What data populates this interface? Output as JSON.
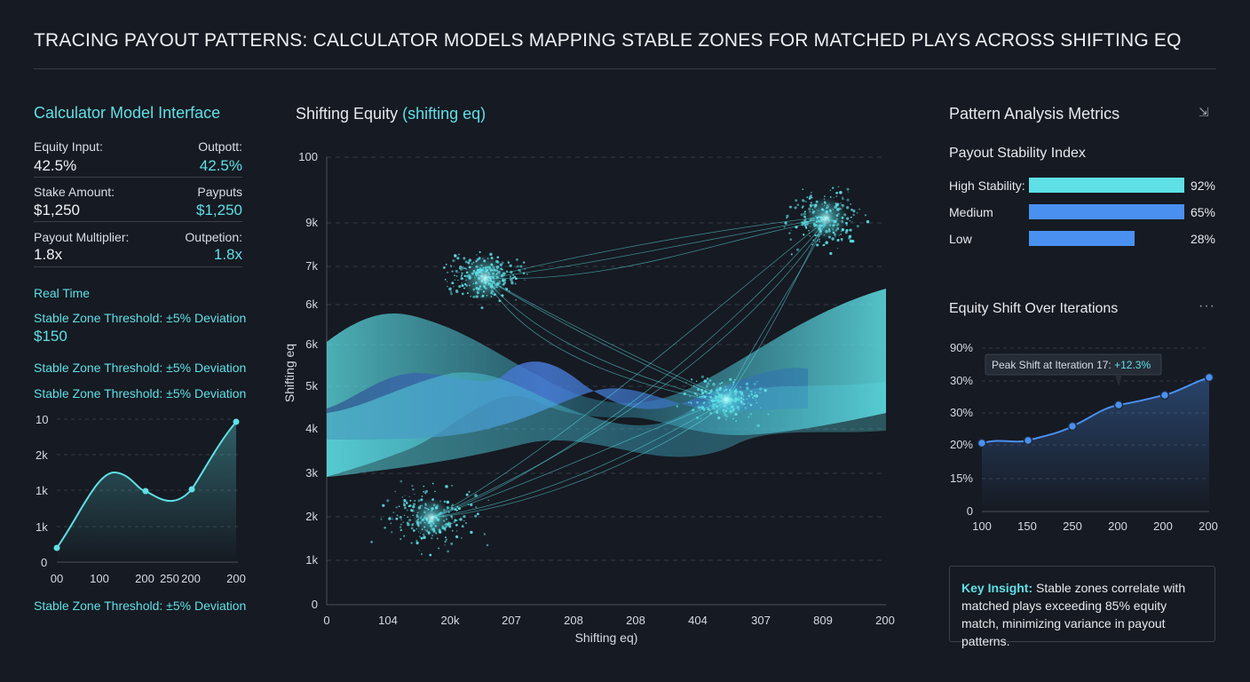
{
  "title": "TRACING PAYOUT PATTERNS: CALCULATOR MODELS MAPPING STABLE ZONES FOR MATCHED PLAYS ACROSS SHIFTING EQ",
  "left_panel": {
    "heading": "Calculator Model Interface",
    "rows": [
      {
        "label": "Equity Input:",
        "value": "42.5%",
        "label_right": "Outpott:",
        "value_right": "42.5%"
      },
      {
        "label": "Stake Amount:",
        "value": "$1,250",
        "label_right": "Payputs",
        "value_right": "$1,250"
      },
      {
        "label": "Payout Multiplier:",
        "value": "1.8x",
        "label_right": "Outpetion:",
        "value_right": "1.8x"
      }
    ],
    "real_time": "Real Time",
    "threshold_1": "Stable Zone Threshold: ±5% Deviation",
    "threshold_value": "$150",
    "threshold_2": "Stable Zone Threshold: ±5% Deviation",
    "threshold_3": "Stable Zone Threshold: ±5% Deviation",
    "threshold_4": "Stable Zone Threshold: ±5% Deviation",
    "mini_chart": {
      "y_ticks": [
        "10",
        "2k",
        "1k",
        "1k",
        "0"
      ],
      "x_ticks": [
        "00",
        "100",
        "200",
        "250",
        "200",
        "200"
      ]
    }
  },
  "center_chart": {
    "title_main": "Shifting Equity ",
    "title_accent": "(shifting eq)",
    "y_label": "Shifting eq",
    "x_label": "Shifting eq)",
    "y_ticks": [
      "100",
      "9k",
      "7k",
      "6k",
      "6k",
      "5k",
      "4k",
      "3k",
      "2k",
      "1k",
      "0"
    ],
    "x_ticks": [
      "0",
      "104",
      "20k",
      "207",
      "208",
      "208",
      "404",
      "307",
      "809",
      "200"
    ]
  },
  "right_panel": {
    "metrics_heading": "Pattern Analysis Metrics",
    "metrics_icon": "expand-arrow-icon",
    "stability_heading": "Payout Stability Index",
    "bars": [
      {
        "label": "High Stability:",
        "pct": "92%",
        "value": 92,
        "color": "#5ee0e6"
      },
      {
        "label": "Medium",
        "pct": "65%",
        "value": 65,
        "color": "#4a90f0"
      },
      {
        "label": "Low",
        "pct": "28%",
        "value": 28,
        "color": "#4a90f0"
      }
    ],
    "shift_heading": "Equity Shift Over Iterations",
    "shift_icon": "more-dots-icon",
    "shift_chart": {
      "y_ticks": [
        "90%",
        "30%",
        "30%",
        "20%",
        "15%",
        "0"
      ],
      "x_ticks": [
        "100",
        "150",
        "250",
        "200",
        "200",
        "200"
      ],
      "tooltip_prefix": "Peak Shift at Iteration 17: ",
      "tooltip_value": "+12.3%"
    },
    "insight_label": "Key Insight:",
    "insight_text": " Stable zones correlate with matched plays exceeding 85% equity match, minimizing variance in payout patterns."
  },
  "colors": {
    "accent": "#5ee0e6",
    "blue": "#4a90f0",
    "background": "#161a22"
  }
}
